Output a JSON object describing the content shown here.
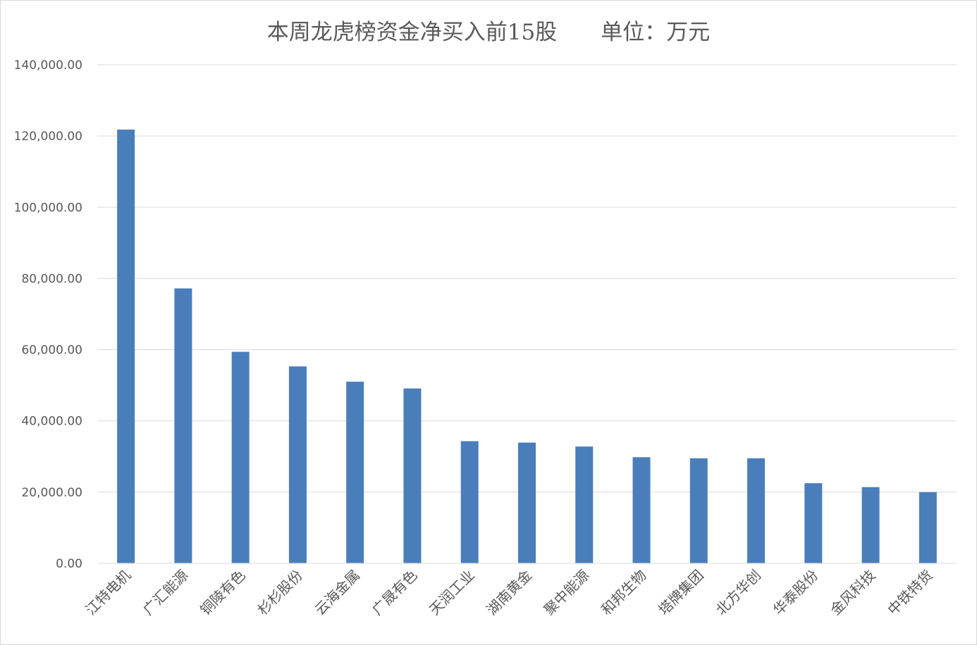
{
  "chart_data": {
    "type": "bar",
    "title": "本周龙虎榜资金净买入前15股　　单位：万元",
    "categories": [
      "江特电机",
      "广汇能源",
      "铜陵有色",
      "杉杉股份",
      "云海金属",
      "广晟有色",
      "天润工业",
      "湖南黄金",
      "聚中能源",
      "和邦生物",
      "塔牌集团",
      "北方华创",
      "华泰股份",
      "金风科技",
      "中铁特货"
    ],
    "values": [
      121800,
      77200,
      59400,
      55300,
      51000,
      49100,
      34300,
      33900,
      32800,
      29800,
      29500,
      29500,
      22500,
      21400,
      20000
    ],
    "ylim": [
      0,
      140000
    ],
    "yticks": [
      0,
      20000,
      40000,
      60000,
      80000,
      100000,
      120000,
      140000
    ],
    "ytick_labels": [
      "0.00",
      "20,000.00",
      "40,000.00",
      "60,000.00",
      "80,000.00",
      "100,000.00",
      "120,000.00",
      "140,000.00"
    ],
    "xlabel": "",
    "ylabel": "",
    "grid": true,
    "legend": "none",
    "bar_color": "#4a7ebb",
    "grid_color": "#d9d9d9"
  }
}
